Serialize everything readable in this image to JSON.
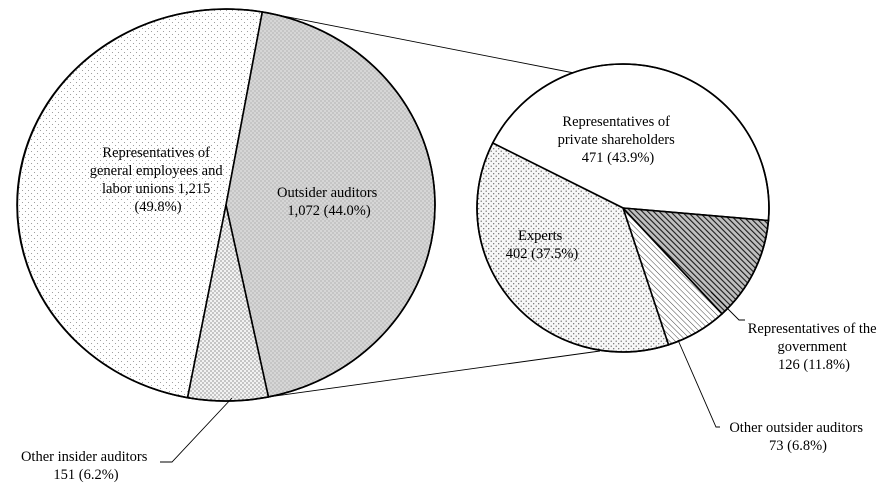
{
  "chart_data": [
    {
      "type": "pie",
      "slices": [
        {
          "label": "Representatives of general employees and labor unions",
          "value": 1215,
          "text_lines": [
            "Representatives of",
            "general employees and",
            "labor unions 1,215",
            "(49.8%)"
          ],
          "fill": "dots-light"
        },
        {
          "label": "Outsider auditors",
          "value": 1072,
          "text_lines": [
            "Outsider auditors",
            "1,072 (44.0%)"
          ],
          "fill": "gray-dots"
        },
        {
          "label": "Other insider auditors",
          "value": 151,
          "text_lines": [
            "Other insider auditors",
            "151 (6.2%)"
          ],
          "fill": "dots-dense"
        }
      ]
    },
    {
      "type": "pie",
      "breakdown_of": "Outsider auditors",
      "slices": [
        {
          "label": "Representatives of private shareholders",
          "value": 471,
          "text_lines": [
            "Representatives of",
            "private shareholders",
            "471 (43.9%)"
          ],
          "fill": "white"
        },
        {
          "label": "Representatives of the government",
          "value": 126,
          "text_lines": [
            "Representatives of the",
            "government",
            "126 (11.8%)"
          ],
          "fill": "diagonal-dark"
        },
        {
          "label": "Other outsider auditors",
          "value": 73,
          "text_lines": [
            "Other outsider auditors",
            "73 (6.8%)"
          ],
          "fill": "diagonal-light"
        },
        {
          "label": "Experts",
          "value": 402,
          "text_lines": [
            "Experts",
            "402 (37.5%)"
          ],
          "fill": "dots-medium"
        }
      ]
    }
  ]
}
